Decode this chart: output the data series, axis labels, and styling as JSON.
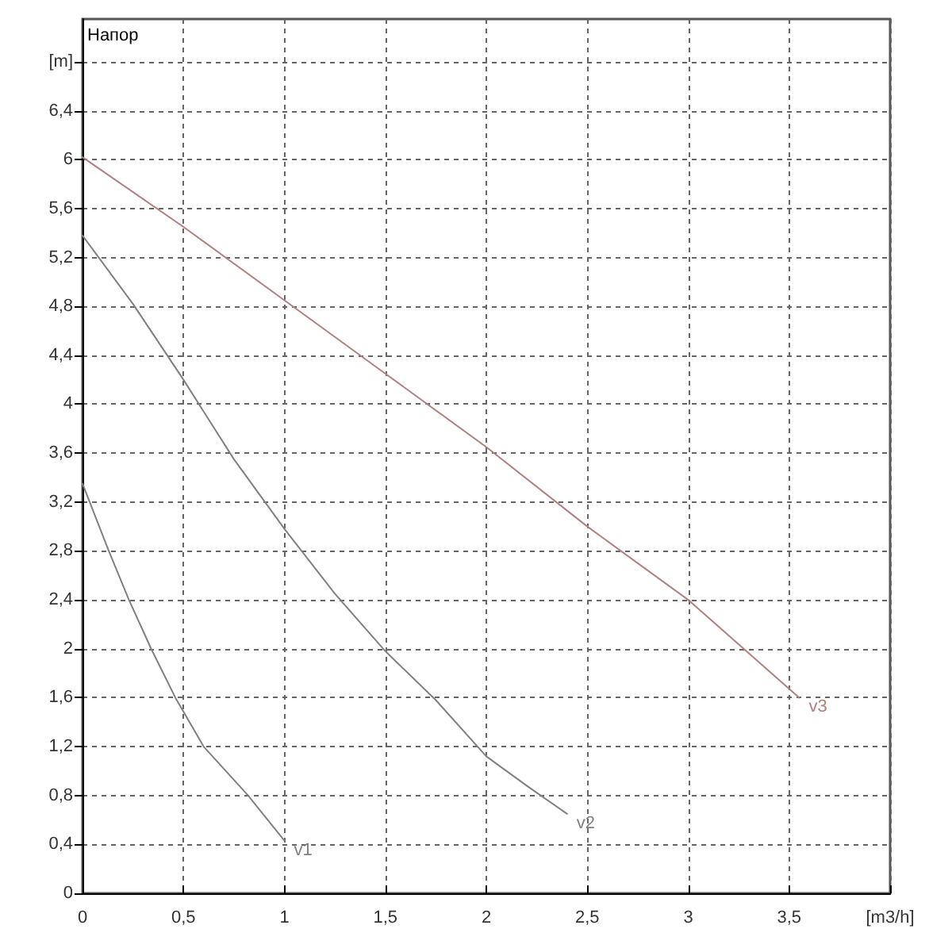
{
  "chart_data": {
    "type": "line",
    "ylabel": "Напор",
    "xlim": [
      0,
      4
    ],
    "xticks": [
      0,
      {
        "value": 0.5,
        "label": "0,5"
      },
      1,
      {
        "value": 1.5,
        "label": "1,5"
      },
      2,
      {
        "value": 2.5,
        "label": "2,5"
      },
      3,
      {
        "value": 3.5,
        "label": "3,5"
      },
      {
        "value": 4,
        "label": "[m3/h]"
      }
    ],
    "ylim": [
      0,
      7.15
    ],
    "yticks": [
      0,
      {
        "value": 0.4,
        "label": "0,4"
      },
      {
        "value": 0.8,
        "label": "0,8"
      },
      {
        "value": 1.2,
        "label": "1,2"
      },
      {
        "value": 1.6,
        "label": "1,6"
      },
      2,
      {
        "value": 2.4,
        "label": "2,4"
      },
      {
        "value": 2.8,
        "label": "2,8"
      },
      {
        "value": 3.2,
        "label": "3,2"
      },
      {
        "value": 3.6,
        "label": "3,6"
      },
      4,
      {
        "value": 4.4,
        "label": "4,4"
      },
      {
        "value": 4.8,
        "label": "4,8"
      },
      {
        "value": 5.2,
        "label": "5,2"
      },
      {
        "value": 5.6,
        "label": "5,6"
      },
      6,
      {
        "value": 6.4,
        "label": "6,4"
      },
      {
        "value": 6.8,
        "label": "[m]"
      }
    ],
    "grid": true,
    "legend": false,
    "marker": "none",
    "line_style": "solid",
    "series": [
      {
        "name": "v1",
        "color": "#808080",
        "x": [
          0,
          0.13,
          0.23,
          0.34,
          0.46,
          0.6,
          0.82,
          1.0
        ],
        "values": [
          3.35,
          2.8,
          2.4,
          2.0,
          1.6,
          1.2,
          0.8,
          0.43
        ]
      },
      {
        "name": "v2",
        "color": "#808080",
        "x": [
          0,
          0.25,
          0.5,
          0.75,
          1,
          1.25,
          1.5,
          1.75,
          2,
          2.2,
          2.4
        ],
        "values": [
          5.38,
          4.82,
          4.2,
          3.55,
          2.98,
          2.45,
          1.98,
          1.58,
          1.12,
          0.88,
          0.65
        ]
      },
      {
        "name": "v3",
        "color": "#b08080",
        "x": [
          0,
          0.5,
          1,
          1.5,
          2,
          2.5,
          3,
          3.55
        ],
        "values": [
          6.02,
          5.45,
          4.85,
          4.25,
          3.65,
          3.0,
          2.4,
          1.6
        ]
      }
    ]
  }
}
